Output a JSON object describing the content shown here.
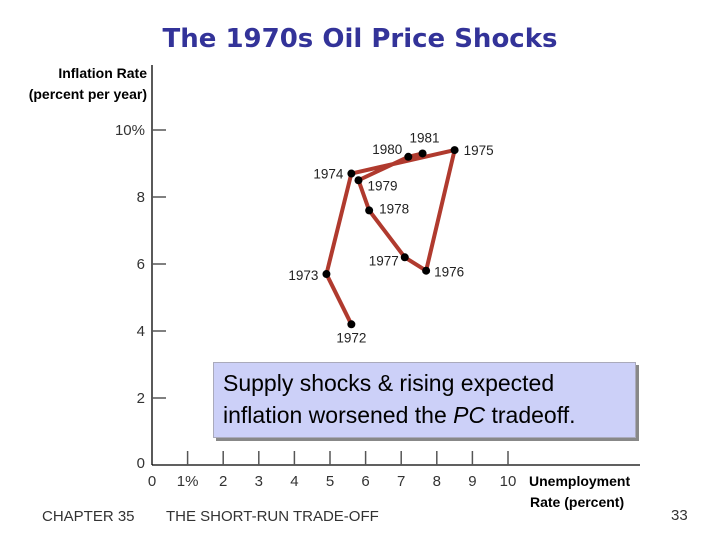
{
  "slide": {
    "title": "The 1970s Oil Price Shocks",
    "callout_pre": "Supply shocks & rising expected",
    "callout_line2_pre": "inflation worsened the ",
    "callout_italic": "PC",
    "callout_line2_post": " tradeoff.",
    "footer_chapter": "CHAPTER 35",
    "footer_title": "THE SHORT-RUN TRADE-OFF",
    "page_number": "33"
  },
  "chart_data": {
    "type": "line",
    "title": "The 1970s Oil Price Shocks",
    "ylabel": [
      "Inflation Rate",
      "(percent per year)"
    ],
    "xlabel": [
      "Unemployment",
      "Rate (percent)"
    ],
    "xlim": [
      0,
      10
    ],
    "ylim": [
      0,
      10
    ],
    "xticks": [
      "0",
      "1%",
      "2",
      "3",
      "4",
      "5",
      "6",
      "7",
      "8",
      "9",
      "10"
    ],
    "yticks": [
      "0",
      "2",
      "4",
      "6",
      "8",
      "10%"
    ],
    "line_color": "#b03a2e",
    "points": [
      {
        "label": "1972",
        "x": 5.6,
        "y": 4.2
      },
      {
        "label": "1973",
        "x": 4.9,
        "y": 5.7
      },
      {
        "label": "1974",
        "x": 5.6,
        "y": 8.7
      },
      {
        "label": "1975",
        "x": 8.5,
        "y": 9.4
      },
      {
        "label": "1976",
        "x": 7.7,
        "y": 5.8
      },
      {
        "label": "1977",
        "x": 7.1,
        "y": 6.2
      },
      {
        "label": "1978",
        "x": 6.1,
        "y": 7.6
      },
      {
        "label": "1979",
        "x": 5.8,
        "y": 8.5
      },
      {
        "label": "1980",
        "x": 7.2,
        "y": 9.2
      },
      {
        "label": "1981",
        "x": 7.6,
        "y": 9.3
      }
    ]
  }
}
